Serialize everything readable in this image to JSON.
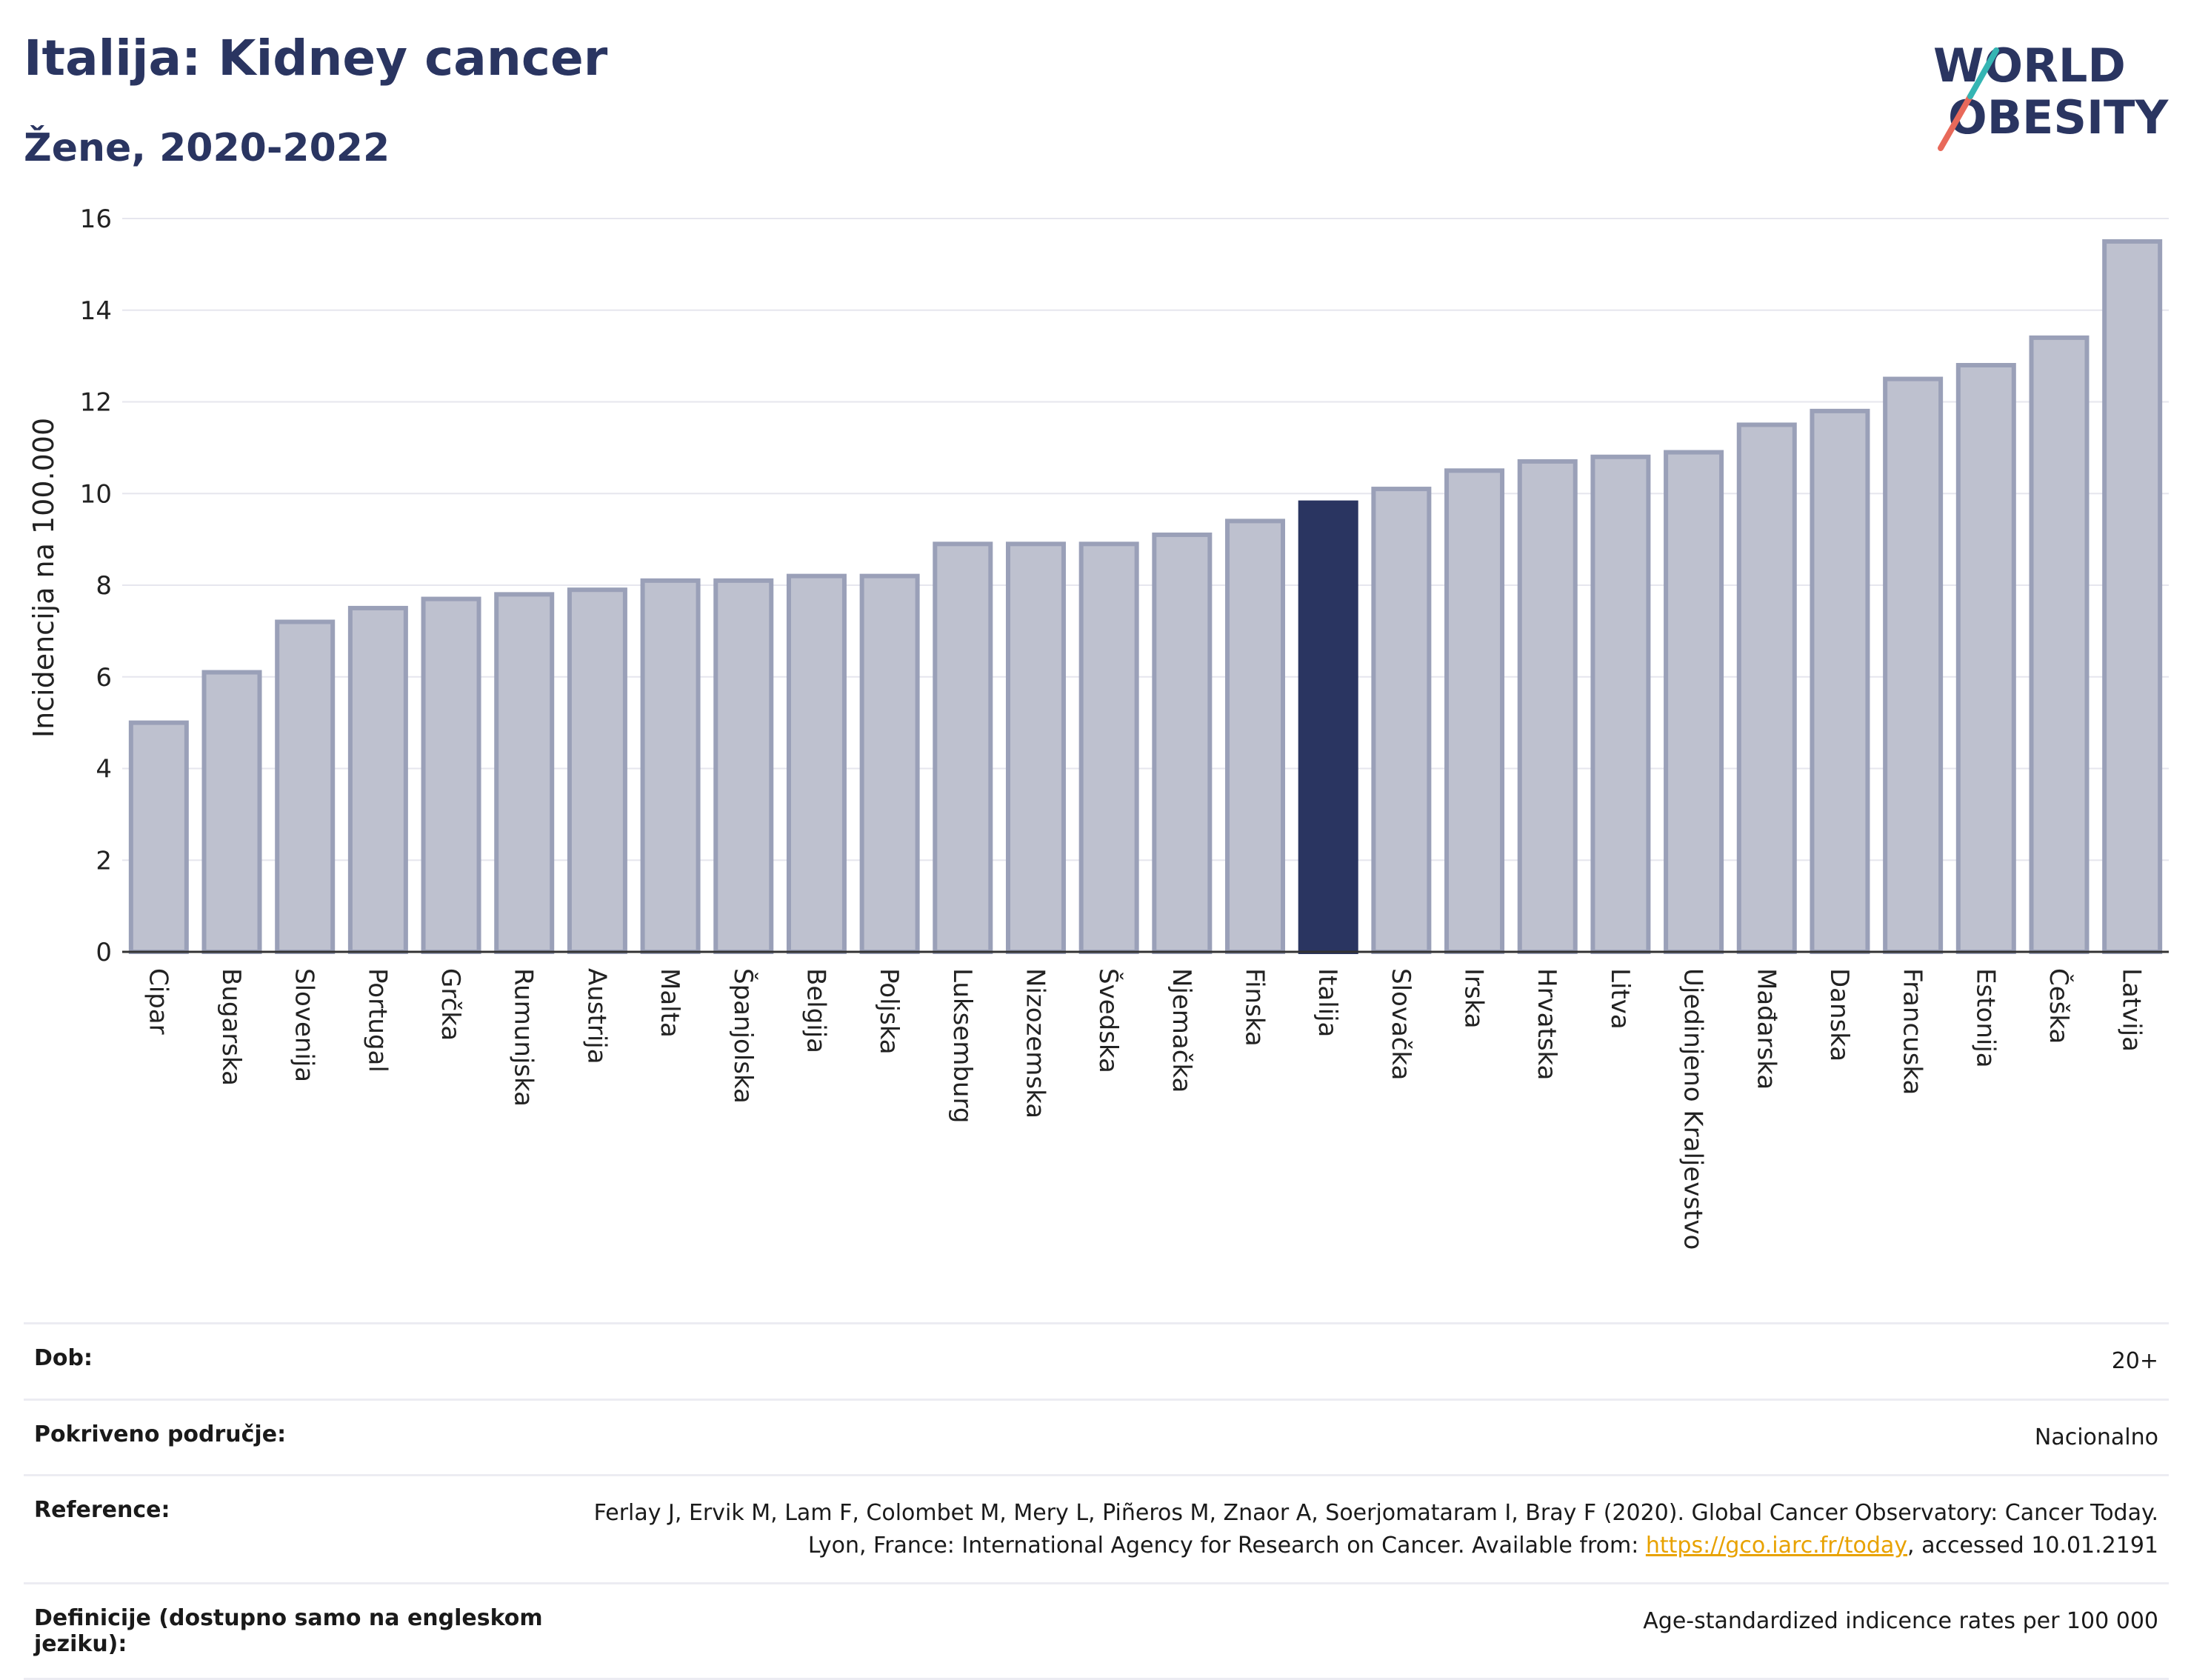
{
  "header": {
    "title": "Italija: Kidney cancer",
    "subtitle": "Žene, 2020-2022"
  },
  "logo": {
    "line1": "WORLD",
    "line2": "OBESITY"
  },
  "colors": {
    "highlight": "#2a3561",
    "bar": "#bec1cf",
    "bar_edge": "#9aa0b8",
    "title": "#2a3561"
  },
  "chart_data": {
    "type": "bar",
    "ylabel": "Incidencija na 100.000",
    "ylim": [
      0,
      16
    ],
    "yticks": [
      0,
      2,
      4,
      6,
      8,
      10,
      12,
      14,
      16
    ],
    "grid": true,
    "highlight": "Italija",
    "categories": [
      "Cipar",
      "Bugarska",
      "Slovenija",
      "Portugal",
      "Grčka",
      "Rumunjska",
      "Austrija",
      "Malta",
      "Španjolska",
      "Belgija",
      "Poljska",
      "Luksemburg",
      "Nizozemska",
      "Švedska",
      "Njemačka",
      "Finska",
      "Italija",
      "Slovačka",
      "Irska",
      "Hrvatska",
      "Litva",
      "Ujedinjeno Kraljevstvo",
      "Mađarska",
      "Danska",
      "Francuska",
      "Estonija",
      "Češka",
      "Latvija"
    ],
    "values": [
      5.0,
      6.1,
      7.2,
      7.5,
      7.7,
      7.8,
      7.9,
      8.1,
      8.1,
      8.2,
      8.2,
      8.9,
      8.9,
      8.9,
      9.1,
      9.4,
      9.8,
      10.1,
      10.5,
      10.7,
      10.8,
      10.9,
      11.5,
      11.8,
      12.5,
      12.8,
      13.4,
      15.5
    ]
  },
  "meta": {
    "age_label": "Dob:",
    "age_value": "20+",
    "coverage_label": "Pokriveno područje:",
    "coverage_value": "Nacionalno",
    "reference_label": "Reference:",
    "reference_text": "Ferlay J, Ervik M, Lam F, Colombet M, Mery L, Piñeros M, Znaor A, Soerjomataram I, Bray F (2020). Global Cancer Observatory: Cancer Today. Lyon, France: International Agency for Research on Cancer. Available from:",
    "reference_link": "https://gco.iarc.fr/today",
    "reference_suffix": ", accessed 10.01.2191",
    "definition_label": "Definicije (dostupno samo na engleskom jeziku):",
    "definition_value": "Age-standardized indicence rates per 100 000"
  }
}
